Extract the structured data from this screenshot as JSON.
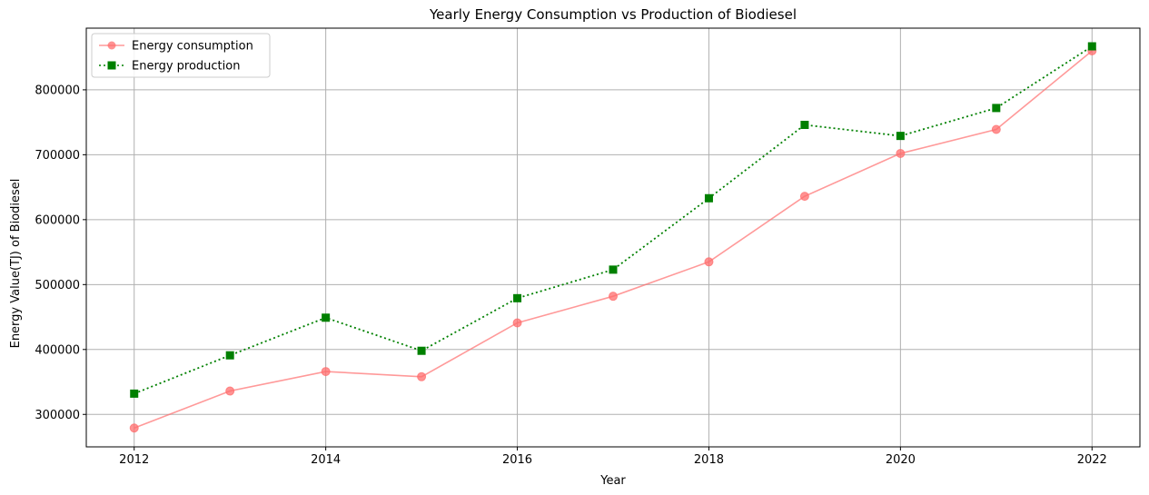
{
  "chart_data": {
    "type": "line",
    "title": "Yearly Energy Consumption vs Production of Biodiesel",
    "xlabel": "Year",
    "ylabel": "Energy Value(TJ) of Biodiesel",
    "xlim": [
      2011.5,
      2022.5
    ],
    "ylim": [
      250000,
      895000
    ],
    "x_ticks": [
      2012,
      2014,
      2016,
      2018,
      2020,
      2022
    ],
    "y_ticks": [
      300000,
      400000,
      500000,
      600000,
      700000,
      800000
    ],
    "x_tick_labels": [
      "2012",
      "2014",
      "2016",
      "2018",
      "2020",
      "2022"
    ],
    "y_tick_labels": [
      "300000",
      "400000",
      "500000",
      "600000",
      "700000",
      "800000"
    ],
    "grid": true,
    "legend_position": "top-left",
    "x": [
      2012,
      2013,
      2014,
      2015,
      2016,
      2017,
      2018,
      2019,
      2020,
      2021,
      2022
    ],
    "series": [
      {
        "name": "Energy consumption",
        "values": [
          279000,
          336000,
          366000,
          358000,
          441000,
          482000,
          535000,
          636000,
          702000,
          739000,
          860000
        ],
        "color": "#ff6e6e",
        "line_style": "solid",
        "marker": "circle"
      },
      {
        "name": "Energy production",
        "values": [
          332000,
          391000,
          449000,
          398000,
          479000,
          523000,
          633000,
          746000,
          729000,
          772000,
          867000
        ],
        "color": "#008000",
        "line_style": "dotted",
        "marker": "square"
      }
    ]
  }
}
